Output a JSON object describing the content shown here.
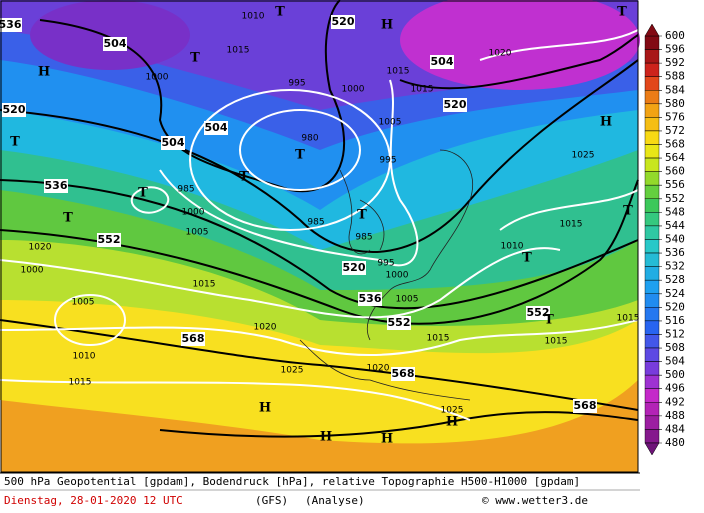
{
  "map": {
    "geopotential_labels": [
      "536",
      "504",
      "520",
      "504",
      "520",
      "520",
      "504",
      "504",
      "536",
      "552",
      "520",
      "536",
      "552",
      "552",
      "568",
      "568",
      "568"
    ],
    "pressure_labels": [
      "1010",
      "1015",
      "1000",
      "995",
      "1000",
      "1005",
      "995",
      "980",
      "985",
      "1000",
      "1005",
      "985",
      "985",
      "995",
      "1000",
      "1005",
      "1010",
      "1015",
      "1025",
      "1020",
      "1015",
      "1015",
      "1020",
      "1005",
      "1010",
      "1015",
      "1015",
      "1020",
      "1025",
      "1020",
      "1025",
      "1015",
      "1015",
      "1015",
      "1000"
    ],
    "pressure_centers": [
      "T",
      "H",
      "T",
      "H",
      "T",
      "T",
      "T",
      "T",
      "T",
      "H",
      "H",
      "H",
      "H",
      "T",
      "T",
      "T",
      "T",
      "H",
      "T"
    ]
  },
  "colorbar": {
    "ticks": [
      600,
      596,
      592,
      588,
      584,
      580,
      576,
      572,
      568,
      564,
      560,
      556,
      552,
      548,
      544,
      540,
      536,
      532,
      528,
      524,
      520,
      516,
      512,
      508,
      504,
      500,
      496,
      492,
      488,
      484,
      480
    ]
  },
  "footer": {
    "description": "500 hPa Geopotential [gpdam], Bodendruck [hPa], relative Topographie H500-H1000 [gpdam]",
    "date": "Dienstag, 28-01-2020  12 UTC",
    "model": "(GFS)",
    "run": "(Analyse)",
    "source": "© www.wetter3.de"
  }
}
